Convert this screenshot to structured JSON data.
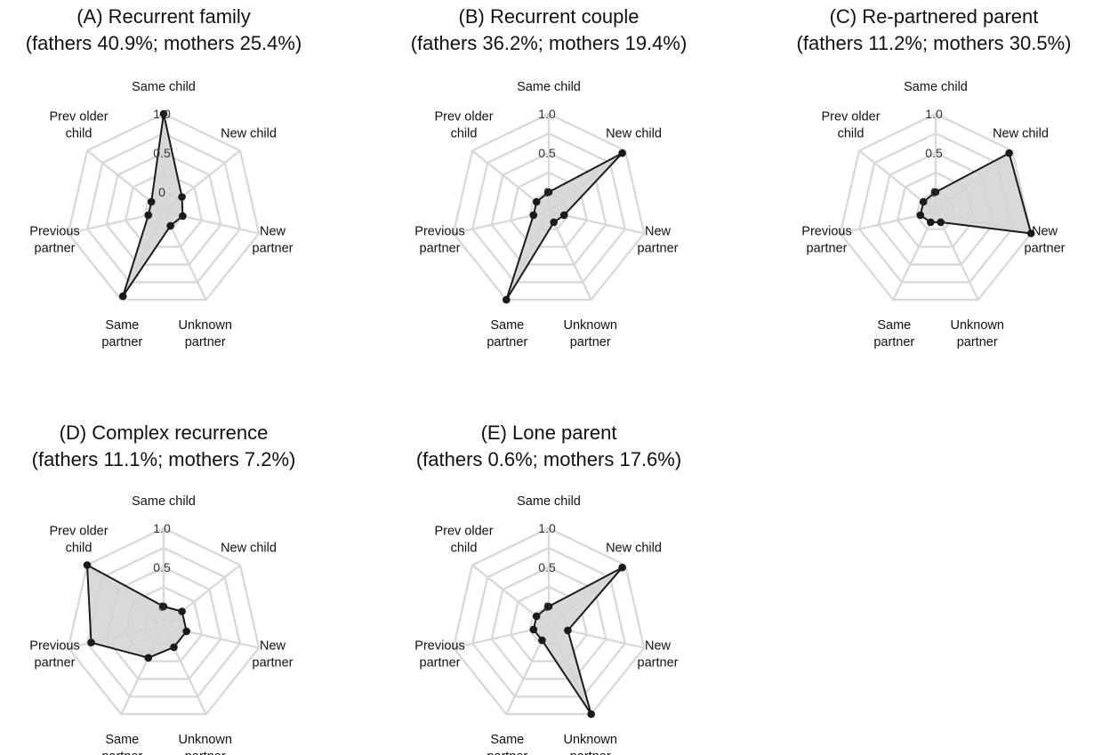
{
  "chart_data": [
    {
      "type": "radar",
      "title": "(A) Recurrent family",
      "subtitle": "(fathers 40.9%; mothers 25.4%)",
      "axes": [
        [
          "Same child"
        ],
        [
          "New child"
        ],
        [
          "New",
          "partner"
        ],
        [
          "Unknown",
          "partner"
        ],
        [
          "Same",
          "partner"
        ],
        [
          "Previous",
          "partner"
        ],
        [
          "Prev older",
          "child"
        ]
      ],
      "ticks": [
        "0",
        "0.5",
        "1.0"
      ],
      "rlim": [
        -0.25,
        1.0
      ],
      "values": [
        1.0,
        0.05,
        0.0,
        -0.05,
        0.95,
        -0.05,
        -0.05
      ]
    },
    {
      "type": "radar",
      "title": "(B) Recurrent couple",
      "subtitle": "(fathers 36.2%; mothers 19.4%)",
      "axes": [
        [
          "Same child"
        ],
        [
          "New child"
        ],
        [
          "New",
          "partner"
        ],
        [
          "Unknown",
          "partner"
        ],
        [
          "Same",
          "partner"
        ],
        [
          "Previous",
          "partner"
        ],
        [
          "Prev older",
          "child"
        ]
      ],
      "ticks": [
        "0",
        "0.5",
        "1.0"
      ],
      "rlim": [
        -0.25,
        1.0
      ],
      "values": [
        0.0,
        0.95,
        -0.05,
        -0.1,
        1.0,
        -0.05,
        -0.05
      ]
    },
    {
      "type": "radar",
      "title": "(C) Re-partnered parent",
      "subtitle": "(fathers 11.2%; mothers 30.5%)",
      "axes": [
        [
          "Same child"
        ],
        [
          "New child"
        ],
        [
          "New",
          "partner"
        ],
        [
          "Unknown",
          "partner"
        ],
        [
          "Same",
          "partner"
        ],
        [
          "Previous",
          "partner"
        ],
        [
          "Prev older",
          "child"
        ]
      ],
      "ticks": [
        "0",
        "0.5",
        "1.0"
      ],
      "rlim": [
        -0.25,
        1.0
      ],
      "values": [
        0.0,
        0.95,
        1.0,
        -0.1,
        -0.1,
        -0.05,
        -0.05
      ]
    },
    {
      "type": "radar",
      "title": "(D) Complex recurrence",
      "subtitle": "(fathers 11.1%; mothers  7.2%)",
      "axes": [
        [
          "Same child"
        ],
        [
          "New child"
        ],
        [
          "New",
          "partner"
        ],
        [
          "Unknown",
          "partner"
        ],
        [
          "Same",
          "partner"
        ],
        [
          "Previous",
          "partner"
        ],
        [
          "Prev older",
          "child"
        ]
      ],
      "ticks": [
        "0",
        "0.5",
        "1.0"
      ],
      "rlim": [
        -0.25,
        1.0
      ],
      "values": [
        0.0,
        0.05,
        0.05,
        0.05,
        0.2,
        0.7,
        1.0
      ]
    },
    {
      "type": "radar",
      "title": "(E) Lone parent",
      "subtitle": "(fathers  0.6%; mothers 17.6%)",
      "axes": [
        [
          "Same child"
        ],
        [
          "New child"
        ],
        [
          "New",
          "partner"
        ],
        [
          "Unknown",
          "partner"
        ],
        [
          "Same",
          "partner"
        ],
        [
          "Previous",
          "partner"
        ],
        [
          "Prev older",
          "child"
        ]
      ],
      "ticks": [
        "0",
        "0.5",
        "1.0"
      ],
      "rlim": [
        -0.25,
        1.0
      ],
      "values": [
        0.0,
        0.95,
        0.0,
        1.0,
        -0.05,
        -0.05,
        -0.05
      ]
    }
  ]
}
